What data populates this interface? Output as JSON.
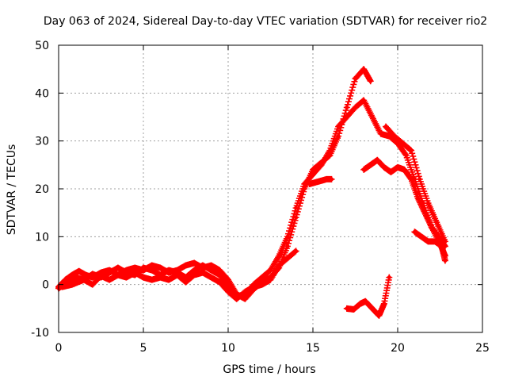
{
  "chart_data": {
    "type": "scatter",
    "title": "Day 063 of 2024, Sidereal Day-to-day VTEC variation (SDTVAR) for receiver rio2",
    "xlabel": "GPS time / hours",
    "ylabel": "SDTVAR / TECUs",
    "xlim": [
      0,
      25
    ],
    "ylim": [
      -10,
      50
    ],
    "xticks": [
      0,
      5,
      10,
      15,
      20,
      25
    ],
    "yticks": [
      -10,
      0,
      10,
      20,
      30,
      40,
      50
    ],
    "grid": true,
    "legend": "none",
    "marker": "plus",
    "color": "#ff0000",
    "series": [
      {
        "name": "arc-1",
        "points": [
          [
            0.0,
            -0.5
          ],
          [
            0.4,
            1.0
          ],
          [
            0.8,
            2.0
          ],
          [
            1.2,
            2.8
          ],
          [
            1.6,
            2.0
          ],
          [
            2.0,
            1.5
          ],
          [
            2.5,
            2.5
          ],
          [
            3.0,
            3.0
          ],
          [
            3.5,
            2.0
          ],
          [
            4.0,
            3.0
          ],
          [
            4.5,
            3.5
          ],
          [
            5.0,
            3.0
          ],
          [
            5.5,
            4.0
          ],
          [
            6.0,
            3.5
          ],
          [
            6.5,
            2.5
          ],
          [
            7.0,
            3.0
          ],
          [
            7.5,
            4.0
          ],
          [
            8.0,
            4.5
          ],
          [
            8.5,
            3.5
          ],
          [
            9.0,
            4.0
          ],
          [
            9.5,
            3.0
          ],
          [
            10.0,
            1.0
          ],
          [
            10.5,
            -2.0
          ],
          [
            11.0,
            -3.0
          ],
          [
            11.5,
            -1.0
          ],
          [
            12.0,
            0.5
          ],
          [
            12.5,
            1.5
          ],
          [
            13.0,
            3.5
          ],
          [
            13.5,
            8.0
          ],
          [
            14.0,
            14.0
          ],
          [
            14.5,
            20.0
          ],
          [
            15.0,
            24.0
          ],
          [
            15.5,
            25.5
          ],
          [
            16.0,
            27.0
          ],
          [
            16.5,
            31.0
          ],
          [
            17.0,
            37.0
          ],
          [
            17.5,
            43.0
          ],
          [
            18.0,
            45.0
          ],
          [
            18.4,
            42.5
          ]
        ]
      },
      {
        "name": "arc-2",
        "points": [
          [
            0.0,
            -0.8
          ],
          [
            0.5,
            0.5
          ],
          [
            1.0,
            1.5
          ],
          [
            1.5,
            1.0
          ],
          [
            2.0,
            2.2
          ],
          [
            2.5,
            1.5
          ],
          [
            3.0,
            2.5
          ],
          [
            3.5,
            3.5
          ],
          [
            4.0,
            2.5
          ],
          [
            4.5,
            2.0
          ],
          [
            5.0,
            3.5
          ],
          [
            5.5,
            3.0
          ],
          [
            6.0,
            2.0
          ],
          [
            6.5,
            3.0
          ],
          [
            7.0,
            2.5
          ],
          [
            7.5,
            1.5
          ],
          [
            8.0,
            3.0
          ],
          [
            8.5,
            4.0
          ],
          [
            9.0,
            3.0
          ],
          [
            9.5,
            2.0
          ],
          [
            10.0,
            -0.5
          ],
          [
            10.5,
            -2.5
          ],
          [
            11.0,
            -2.0
          ],
          [
            11.5,
            0.0
          ],
          [
            12.0,
            1.5
          ],
          [
            12.5,
            3.0
          ],
          [
            13.0,
            6.0
          ],
          [
            13.5,
            10.0
          ],
          [
            14.0,
            16.0
          ],
          [
            14.5,
            21.0
          ],
          [
            15.0,
            23.0
          ],
          [
            15.5,
            25.0
          ],
          [
            16.0,
            28.0
          ],
          [
            16.5,
            33.0
          ],
          [
            17.0,
            35.0
          ],
          [
            17.5,
            37.0
          ],
          [
            18.0,
            38.5
          ],
          [
            18.5,
            35.0
          ],
          [
            19.0,
            31.5
          ],
          [
            19.5,
            31.0
          ],
          [
            20.0,
            29.5
          ],
          [
            20.5,
            27.0
          ],
          [
            21.0,
            22.0
          ],
          [
            21.5,
            17.0
          ],
          [
            22.0,
            12.0
          ],
          [
            22.5,
            8.5
          ],
          [
            22.8,
            6.0
          ]
        ]
      },
      {
        "name": "arc-3",
        "points": [
          [
            0.2,
            -0.5
          ],
          [
            0.8,
            0.0
          ],
          [
            1.5,
            1.0
          ],
          [
            2.0,
            0.0
          ],
          [
            2.5,
            1.8
          ],
          [
            3.0,
            1.0
          ],
          [
            3.5,
            2.0
          ],
          [
            4.0,
            1.5
          ],
          [
            4.5,
            2.5
          ],
          [
            5.0,
            1.5
          ],
          [
            5.5,
            1.0
          ],
          [
            6.0,
            1.5
          ],
          [
            6.5,
            1.0
          ],
          [
            7.0,
            2.0
          ],
          [
            7.5,
            0.5
          ],
          [
            8.0,
            2.0
          ],
          [
            8.5,
            2.5
          ],
          [
            9.0,
            1.5
          ],
          [
            9.5,
            0.5
          ],
          [
            10.0,
            -1.5
          ],
          [
            10.5,
            -3.0
          ],
          [
            11.0,
            -1.5
          ],
          [
            11.5,
            -0.5
          ],
          [
            12.0,
            0.0
          ],
          [
            12.5,
            1.0
          ],
          [
            13.0,
            4.0
          ],
          [
            13.5,
            5.5
          ],
          [
            14.0,
            7.0
          ]
        ]
      },
      {
        "name": "arc-4",
        "points": [
          [
            14.8,
            21.0
          ],
          [
            15.3,
            21.5
          ],
          [
            15.8,
            22.0
          ],
          [
            16.1,
            22.0
          ]
        ]
      },
      {
        "name": "arc-5",
        "points": [
          [
            19.3,
            33.0
          ],
          [
            19.8,
            31.0
          ],
          [
            20.3,
            29.5
          ],
          [
            20.8,
            28.0
          ],
          [
            21.3,
            22.0
          ],
          [
            21.8,
            17.0
          ],
          [
            22.3,
            13.0
          ],
          [
            22.8,
            9.0
          ]
        ]
      },
      {
        "name": "arc-6",
        "points": [
          [
            18.0,
            24.0
          ],
          [
            18.4,
            25.0
          ],
          [
            18.8,
            26.0
          ],
          [
            19.2,
            24.5
          ],
          [
            19.6,
            23.5
          ],
          [
            20.0,
            24.5
          ],
          [
            20.4,
            24.0
          ],
          [
            20.8,
            22.0
          ],
          [
            21.2,
            18.0
          ],
          [
            21.6,
            15.0
          ],
          [
            22.0,
            12.0
          ],
          [
            22.4,
            10.0
          ],
          [
            22.8,
            8.0
          ]
        ]
      },
      {
        "name": "arc-7",
        "points": [
          [
            21.0,
            11.0
          ],
          [
            21.4,
            10.0
          ],
          [
            21.8,
            9.0
          ],
          [
            22.2,
            9.0
          ],
          [
            22.6,
            8.0
          ],
          [
            22.8,
            5.0
          ]
        ]
      },
      {
        "name": "arc-8",
        "points": [
          [
            17.0,
            -5.0
          ],
          [
            17.4,
            -5.2
          ],
          [
            17.8,
            -4.0
          ],
          [
            18.1,
            -3.5
          ],
          [
            18.5,
            -5.0
          ],
          [
            18.9,
            -6.5
          ],
          [
            19.2,
            -4.0
          ],
          [
            19.5,
            1.5
          ]
        ]
      }
    ]
  }
}
